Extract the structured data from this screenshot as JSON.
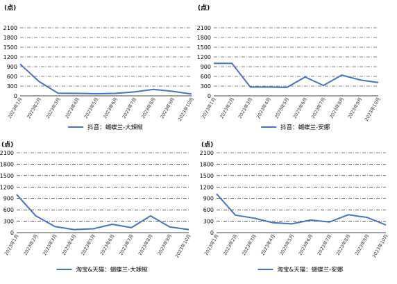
{
  "figure": {
    "accent": "#4472c4",
    "grid_color": "#000000"
  },
  "chart_data": [
    {
      "type": "line",
      "unit": "(点)",
      "ylim": [
        0,
        2100
      ],
      "yticks": [
        0,
        300,
        600,
        900,
        1200,
        1500,
        1800,
        2100
      ],
      "grid": true,
      "grid_style": "dash-dot",
      "legend_position": "bottom",
      "categories": [
        "2023年1月",
        "2023年2月",
        "2023年3月",
        "2023年4月",
        "2023年5月",
        "2023年6月",
        "2023年7月",
        "2023年8月",
        "2023年9月",
        "2023年10月"
      ],
      "series": [
        {
          "name": "抖音：蝴蝶兰-大辣椒",
          "color": "#4472c4",
          "values": [
            980,
            440,
            80,
            75,
            65,
            75,
            120,
            200,
            140,
            55
          ]
        }
      ]
    },
    {
      "type": "line",
      "unit": "(点)",
      "ylim": [
        0,
        2100
      ],
      "yticks": [
        0,
        300,
        600,
        900,
        1200,
        1500,
        1800,
        2100
      ],
      "grid": true,
      "grid_style": "dash-dot",
      "legend_position": "bottom",
      "categories": [
        "2023年1月",
        "2023年2月",
        "2023年3月",
        "2023年4月",
        "2023年5月",
        "2023年6月",
        "2023年7月",
        "2023年8月",
        "2023年9月",
        "2023年10月"
      ],
      "series": [
        {
          "name": "抖音：蝴蝶兰-安娜",
          "color": "#4472c4",
          "values": [
            1000,
            1000,
            270,
            270,
            260,
            580,
            320,
            640,
            490,
            410
          ]
        }
      ]
    },
    {
      "type": "line",
      "unit": "(点)",
      "ylim": [
        0,
        2100
      ],
      "yticks": [
        0,
        300,
        600,
        900,
        1200,
        1500,
        1800,
        2100
      ],
      "grid": true,
      "grid_style": "dash-dot",
      "legend_position": "bottom",
      "categories": [
        "2023年1月",
        "2023年2月",
        "2023年3月",
        "2023年4月",
        "2023年5月",
        "2023年6月",
        "2023年7月",
        "2023年8月",
        "2023年9月",
        "2023年10月"
      ],
      "series": [
        {
          "name": "淘宝&天猫：蝴蝶兰-大辣椒",
          "color": "#4472c4",
          "values": [
            1000,
            440,
            160,
            80,
            100,
            220,
            130,
            440,
            150,
            80
          ]
        }
      ]
    },
    {
      "type": "line",
      "unit": "(点)",
      "ylim": [
        0,
        2100
      ],
      "yticks": [
        0,
        300,
        600,
        900,
        1200,
        1500,
        1800,
        2100
      ],
      "grid": true,
      "grid_style": "dash-dot",
      "legend_position": "bottom",
      "categories": [
        "2023年1月",
        "2023年2月",
        "2023年3月",
        "2023年4月",
        "2023年5月",
        "2023年6月",
        "2023年7月",
        "2023年8月",
        "2023年9月",
        "2023年10月"
      ],
      "series": [
        {
          "name": "淘宝&天猫：蝴蝶兰-安娜",
          "color": "#4472c4",
          "values": [
            1020,
            460,
            380,
            260,
            230,
            330,
            280,
            470,
            400,
            200
          ]
        }
      ]
    }
  ]
}
